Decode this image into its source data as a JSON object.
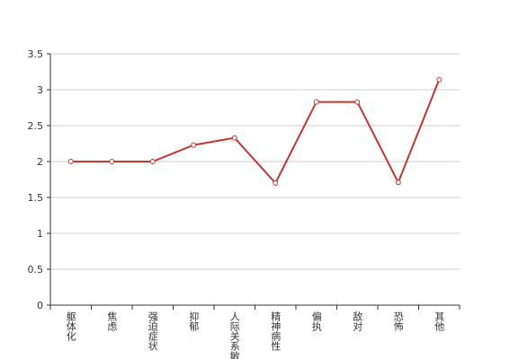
{
  "chart_data": {
    "type": "line",
    "categories": [
      "躯体化",
      "焦虑",
      "强迫症状",
      "抑郁",
      "人际关系敏感",
      "精神病性",
      "偏执",
      "敌对",
      "恐怖",
      "其他"
    ],
    "values": [
      2,
      2,
      2,
      2.23,
      2.33,
      1.7,
      2.83,
      2.83,
      1.71,
      3.14
    ],
    "color": "#c23531",
    "ylim": [
      0,
      3.5
    ],
    "yticks": [
      0,
      0.5,
      1,
      1.5,
      2,
      2.5,
      3,
      3.5
    ],
    "grid": true
  }
}
